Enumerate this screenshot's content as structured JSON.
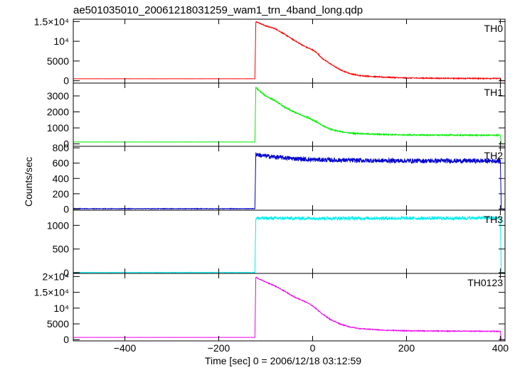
{
  "chart_data": {
    "type": "line",
    "title": "ae501035010_20061218031259_wam1_trn_4band_long.qdp",
    "xlabel": "Time [sec] 0 = 2006/12/18 03:12:59",
    "ylabel": "Counts/sec",
    "xlim": [
      -510,
      410
    ],
    "x_ticks": [
      -400,
      -200,
      0,
      200,
      400
    ],
    "x_tick_labels": [
      "−400",
      "−200",
      "0",
      "200",
      "400"
    ],
    "grid": false,
    "panels": [
      {
        "name": "TH0",
        "color": "#ff0000",
        "ylim": [
          -600,
          15600
        ],
        "y_ticks": [
          0,
          5000,
          10000,
          15000
        ],
        "y_tick_labels": [
          "0",
          "5000",
          "10⁴",
          "1.5×10⁴"
        ],
        "noise": 120,
        "x": [
          -510,
          -123,
          -121,
          -115,
          -100,
          -80,
          -60,
          -40,
          -20,
          -10,
          0,
          10,
          20,
          40,
          60,
          80,
          100,
          150,
          200,
          300,
          400,
          402,
          410
        ],
        "y": [
          500,
          500,
          15000,
          14700,
          13900,
          13200,
          11800,
          10300,
          8900,
          8300,
          7800,
          7000,
          5700,
          4100,
          2700,
          1800,
          1300,
          900,
          700,
          600,
          580,
          0,
          0
        ]
      },
      {
        "name": "TH1",
        "color": "#00ee00",
        "ylim": [
          -150,
          3800
        ],
        "y_ticks": [
          0,
          1000,
          2000,
          3000
        ],
        "y_tick_labels": [
          "0",
          "1000",
          "2000",
          "3000"
        ],
        "noise": 35,
        "x": [
          -510,
          -123,
          -121,
          -115,
          -100,
          -80,
          -60,
          -40,
          -20,
          -10,
          0,
          10,
          20,
          40,
          60,
          80,
          100,
          150,
          200,
          300,
          400,
          402,
          410
        ],
        "y": [
          120,
          120,
          3550,
          3350,
          3000,
          2700,
          2300,
          2000,
          1750,
          1650,
          1500,
          1350,
          1150,
          900,
          760,
          680,
          640,
          590,
          560,
          545,
          540,
          0,
          0
        ]
      },
      {
        "name": "TH2",
        "color": "#0000cc",
        "ylim": [
          -15,
          820
        ],
        "y_ticks": [
          0,
          200,
          400,
          600,
          800
        ],
        "y_tick_labels": [
          "0",
          "200",
          "400",
          "600",
          "800"
        ],
        "noise": 30,
        "x": [
          -510,
          -123,
          -121,
          -110,
          -80,
          -40,
          0,
          100,
          200,
          300,
          400,
          402,
          410
        ],
        "y": [
          5,
          5,
          720,
          700,
          680,
          660,
          645,
          635,
          630,
          630,
          630,
          0,
          0
        ]
      },
      {
        "name": "TH3",
        "color": "#00eeee",
        "ylim": [
          -15,
          1320
        ],
        "y_ticks": [
          0,
          500,
          1000
        ],
        "y_tick_labels": [
          "0",
          "500",
          "1000"
        ],
        "noise": 35,
        "x": [
          -510,
          -123,
          -121,
          -100,
          0,
          100,
          200,
          300,
          400,
          402,
          410
        ],
        "y": [
          5,
          5,
          1150,
          1150,
          1150,
          1150,
          1150,
          1150,
          1160,
          0,
          0
        ]
      },
      {
        "name": "TH0123",
        "color": "#ee00ee",
        "ylim": [
          -400,
          21000
        ],
        "y_ticks": [
          0,
          5000,
          10000,
          15000,
          20000
        ],
        "y_tick_labels": [
          "0",
          "5000",
          "10⁴",
          "1.5×10⁴",
          "2×10⁴"
        ],
        "noise": 130,
        "x": [
          -510,
          -123,
          -121,
          -115,
          -100,
          -80,
          -60,
          -40,
          -20,
          -10,
          0,
          10,
          20,
          40,
          60,
          80,
          100,
          150,
          200,
          300,
          400,
          402,
          410
        ],
        "y": [
          700,
          700,
          19800,
          19300,
          18300,
          17000,
          15400,
          13600,
          12300,
          11600,
          10700,
          9500,
          8200,
          6200,
          4900,
          4000,
          3500,
          3000,
          2800,
          2700,
          2650,
          0,
          0
        ]
      }
    ]
  }
}
